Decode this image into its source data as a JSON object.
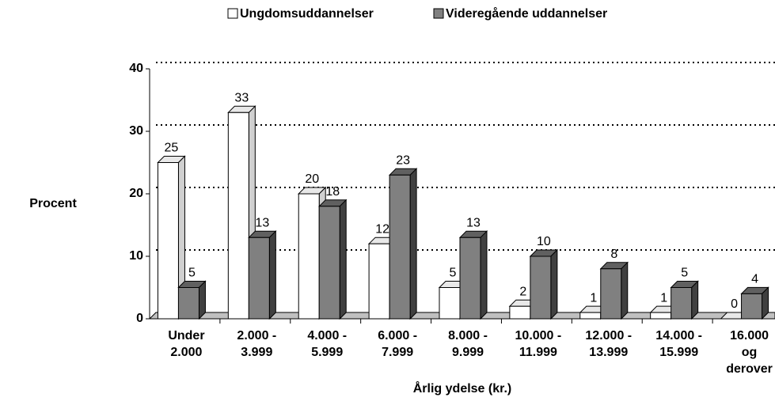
{
  "chart_data": {
    "type": "bar",
    "categories": [
      "Under\n2.000",
      "2.000 -\n3.999",
      "4.000 -\n5.999",
      "6.000 -\n7.999",
      "8.000 -\n9.999",
      "10.000 -\n11.999",
      "12.000 -\n13.999",
      "14.000 -\n15.999",
      "16.000\nog\nderover"
    ],
    "series": [
      {
        "name": "Ungdomsuddannelser",
        "color": "#ffffff",
        "values": [
          25,
          33,
          20,
          12,
          5,
          2,
          1,
          1,
          0
        ]
      },
      {
        "name": "Videregående uddannelser",
        "color": "#808080",
        "values": [
          5,
          13,
          18,
          23,
          13,
          10,
          8,
          5,
          4
        ]
      }
    ],
    "y_label": "Procent",
    "x_label": "Årlig ydelse (kr.)",
    "ylim": [
      0,
      40
    ],
    "yticks": [
      0,
      10,
      20,
      30,
      40
    ],
    "grid": true,
    "legend": "top"
  }
}
